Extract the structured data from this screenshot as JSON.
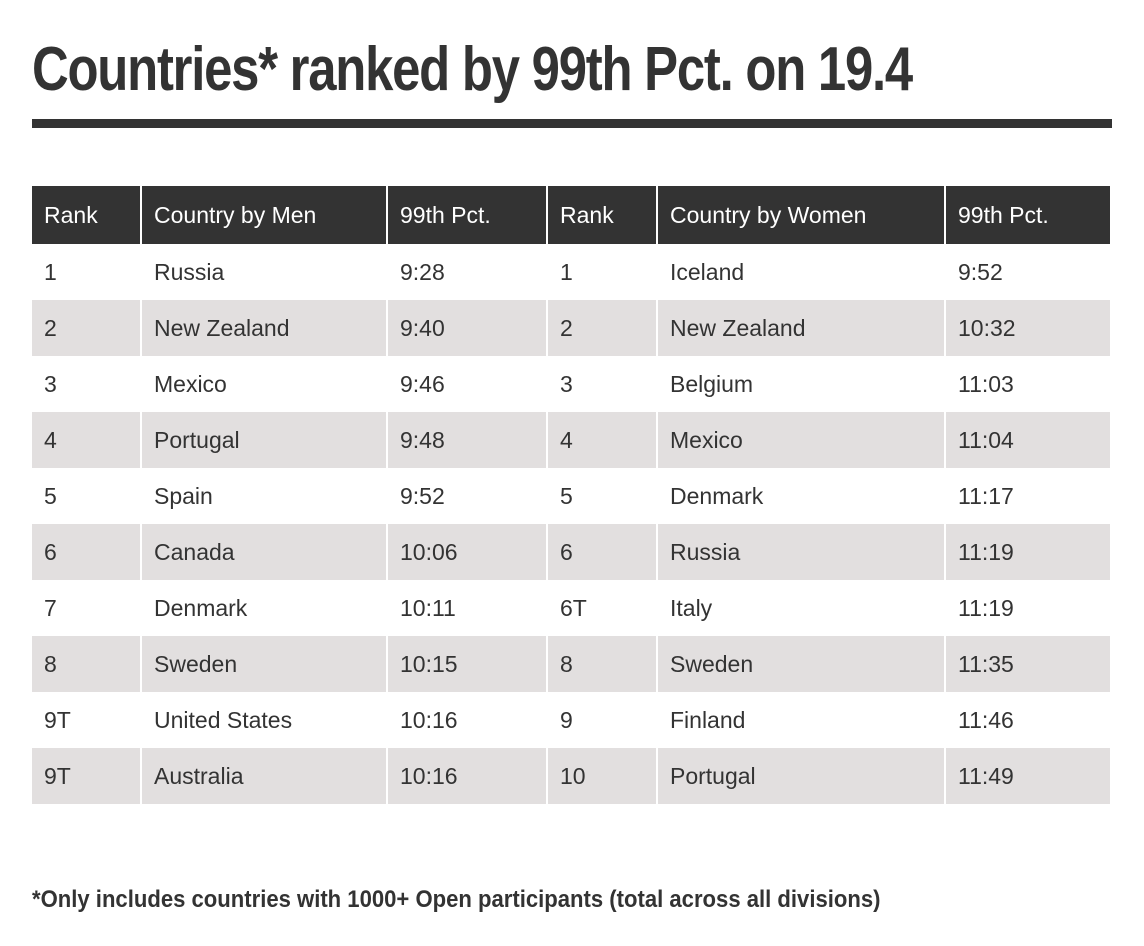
{
  "title": "Countries* ranked by 99th Pct. on 19.4",
  "colors": {
    "header_bg": "#333333",
    "stripe_bg": "#e2dfdf",
    "text": "#333333"
  },
  "table": {
    "headers": [
      "Rank",
      "Country by Men",
      "99th Pct.",
      "Rank",
      "Country by Women",
      "99th Pct."
    ],
    "rows": [
      [
        "1",
        "Russia",
        "9:28",
        "1",
        "Iceland",
        "9:52"
      ],
      [
        "2",
        "New Zealand",
        "9:40",
        "2",
        "New Zealand",
        "10:32"
      ],
      [
        "3",
        "Mexico",
        "9:46",
        "3",
        "Belgium",
        "11:03"
      ],
      [
        "4",
        "Portugal",
        "9:48",
        "4",
        "Mexico",
        "11:04"
      ],
      [
        "5",
        "Spain",
        "9:52",
        "5",
        "Denmark",
        "11:17"
      ],
      [
        "6",
        "Canada",
        "10:06",
        "6",
        "Russia",
        "11:19"
      ],
      [
        "7",
        "Denmark",
        "10:11",
        "6T",
        "Italy",
        "11:19"
      ],
      [
        "8",
        "Sweden",
        "10:15",
        "8",
        "Sweden",
        "11:35"
      ],
      [
        "9T",
        "United States",
        "10:16",
        "9",
        "Finland",
        "11:46"
      ],
      [
        "9T",
        "Australia",
        "10:16",
        "10",
        "Portugal",
        "11:49"
      ]
    ]
  },
  "footnote": "*Only includes countries with 1000+ Open participants (total across all divisions)"
}
